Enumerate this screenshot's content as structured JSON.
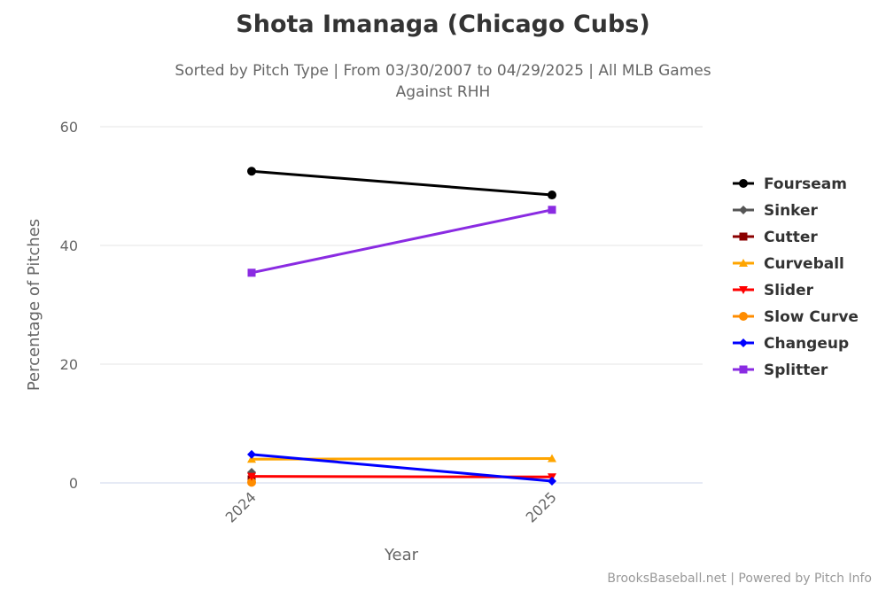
{
  "chart_data": {
    "type": "line",
    "title": "Shota Imanaga (Chicago Cubs)",
    "subtitle_line1": "Sorted by Pitch Type | From 03/30/2007 to 04/29/2025 | All MLB Games",
    "subtitle_line2": "Against RHH",
    "xlabel": "Year",
    "ylabel": "Percentage of Pitches",
    "categories": [
      "2024",
      "2025"
    ],
    "ylim": [
      0,
      60
    ],
    "yticks": [
      0,
      20,
      40,
      60
    ],
    "grid": true,
    "legend_position": "right",
    "series": [
      {
        "name": "Fourseam",
        "color": "#000000",
        "marker": "circle",
        "values": [
          52.5,
          48.5
        ]
      },
      {
        "name": "Sinker",
        "color": "#555555",
        "marker": "diamond",
        "values": [
          1.8,
          null
        ]
      },
      {
        "name": "Cutter",
        "color": "#8b0000",
        "marker": "square",
        "values": [
          0.6,
          null
        ]
      },
      {
        "name": "Curveball",
        "color": "#ffa500",
        "marker": "triangle",
        "values": [
          4.0,
          4.1
        ]
      },
      {
        "name": "Slider",
        "color": "#ff0000",
        "marker": "triangle-down",
        "values": [
          1.1,
          1.0
        ]
      },
      {
        "name": "Slow Curve",
        "color": "#ff8c00",
        "marker": "circle",
        "values": [
          0.1,
          null
        ]
      },
      {
        "name": "Changeup",
        "color": "#0000ff",
        "marker": "diamond",
        "values": [
          4.8,
          0.3
        ]
      },
      {
        "name": "Splitter",
        "color": "#8a2be2",
        "marker": "square",
        "values": [
          35.4,
          46.0
        ]
      }
    ]
  },
  "credit": "BrooksBaseball.net | Powered by Pitch Info"
}
